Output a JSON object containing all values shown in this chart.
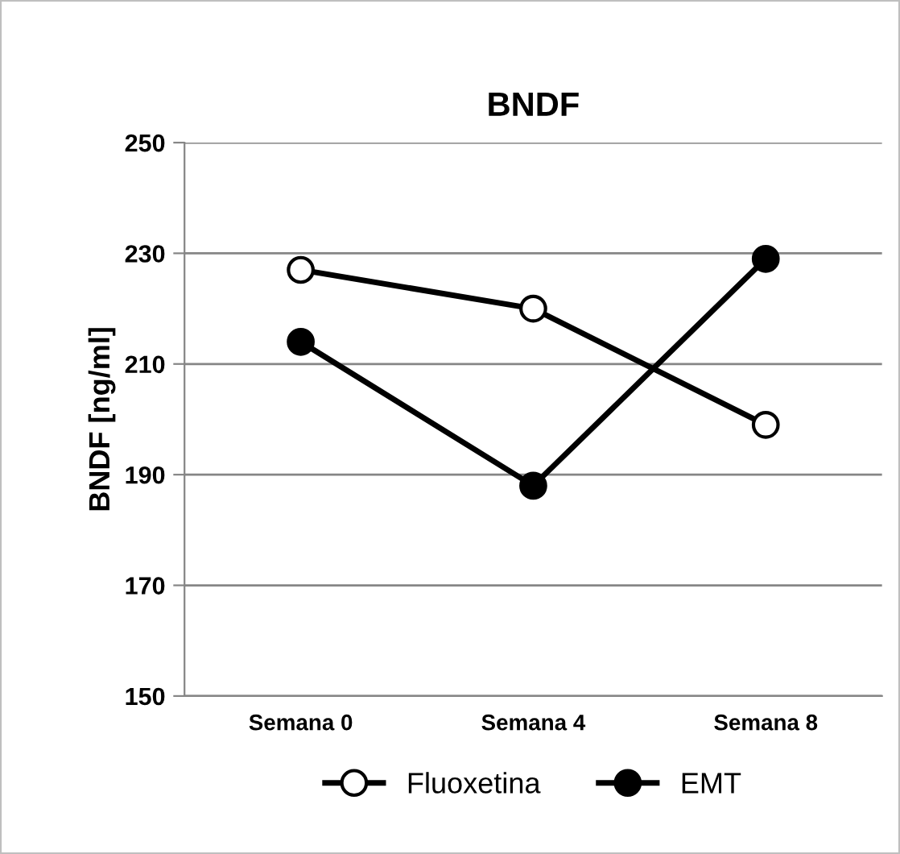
{
  "chart_data": {
    "type": "line",
    "title": "BNDF",
    "ylabel": "BNDF [ng/ml]",
    "categories": [
      "Semana 0",
      "Semana 4",
      "Semana 8"
    ],
    "series": [
      {
        "name": "Fluoxetina",
        "color": "#ffffff",
        "values": [
          227,
          220,
          199
        ]
      },
      {
        "name": "EMT",
        "color": "#000000",
        "values": [
          214,
          188,
          229
        ]
      }
    ],
    "ylim": [
      150,
      250
    ],
    "yticks": [
      150,
      170,
      190,
      210,
      230,
      250
    ],
    "grid": "y",
    "legend": "bottom",
    "marker": "circle",
    "line_style": "solid"
  }
}
